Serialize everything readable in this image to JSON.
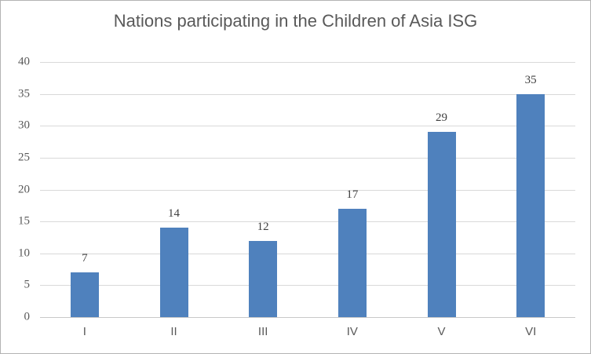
{
  "chart_data": {
    "type": "bar",
    "title": "Nations participating in the Children of Asia ISG",
    "categories": [
      "I",
      "II",
      "III",
      "IV",
      "V",
      "VI"
    ],
    "values": [
      7,
      14,
      12,
      17,
      29,
      35
    ],
    "xlabel": "",
    "ylabel": "",
    "ylim": [
      0,
      40
    ],
    "yticks": [
      0,
      5,
      10,
      15,
      20,
      25,
      30,
      35,
      40
    ],
    "grid": true,
    "legend": false,
    "data_labels_shown": true,
    "colors": {
      "bar": "#4f81bd",
      "gridline": "#d9d9d9",
      "axis_line": "#c9c9c9",
      "axis_text": "#595959",
      "title_text": "#595959",
      "data_label_text": "#3f3f3f",
      "background": "#ffffff",
      "frame_border": "#b3b3b3"
    }
  }
}
